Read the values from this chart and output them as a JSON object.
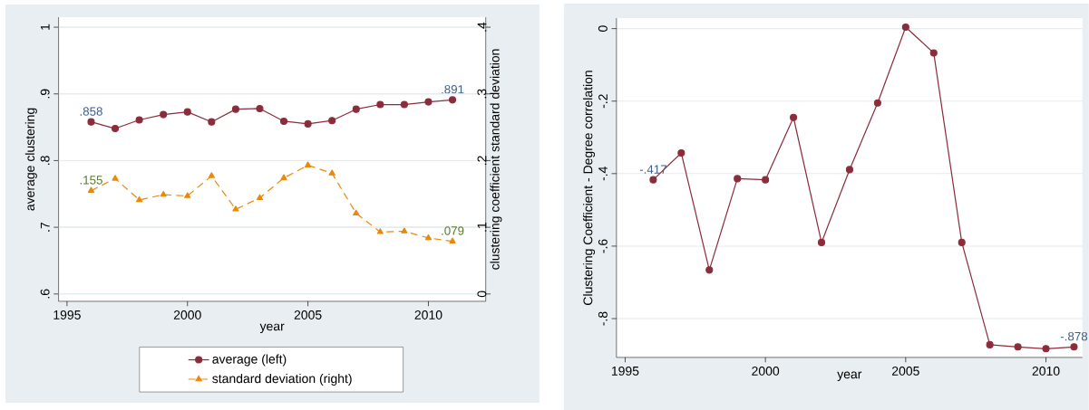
{
  "chart_data": [
    {
      "type": "line",
      "x": [
        1996,
        1997,
        1998,
        1999,
        2000,
        2001,
        2002,
        2003,
        2004,
        2005,
        2006,
        2007,
        2008,
        2009,
        2010,
        2011
      ],
      "xlabel": "year",
      "ylabel": "average clustering",
      "y2label": "clustering coefficient standard deviation",
      "xlim": [
        1994.65,
        2012.38
      ],
      "xticks": [
        1995,
        2000,
        2005,
        2010
      ],
      "ylim": [
        0.589,
        1.015
      ],
      "yticks": [
        {
          "value": 0.6,
          "label": ".6"
        },
        {
          "value": 0.7,
          "label": ".7"
        },
        {
          "value": 0.8,
          "label": ".8"
        },
        {
          "value": 0.9,
          "label": ".9"
        },
        1
      ],
      "y2lim": [
        -0.011,
        0.415
      ],
      "y2ticks": [
        0,
        {
          "value": 0.1,
          "label": ".1"
        },
        {
          "value": 0.2,
          "label": ".2"
        },
        {
          "value": 0.3,
          "label": ".3"
        },
        {
          "value": 0.4,
          "label": ".4"
        }
      ],
      "grid": "y",
      "legend": "bottom",
      "series": [
        {
          "name": "average (left)",
          "color": "#8b2c3a",
          "marker": "circle",
          "line_style": "solid",
          "values": [
            0.858,
            0.848,
            0.861,
            0.869,
            0.873,
            0.858,
            0.877,
            0.878,
            0.859,
            0.855,
            0.86,
            0.877,
            0.884,
            0.884,
            0.888,
            0.891
          ],
          "value_labels": [
            ".858",
            null,
            null,
            null,
            null,
            null,
            null,
            null,
            null,
            null,
            null,
            null,
            null,
            null,
            null,
            ".891"
          ]
        },
        {
          "name": "standard deviation (right)",
          "color": "#e8890c",
          "marker": "triangle",
          "line_style": "dashed",
          "axis": "y2",
          "values": [
            0.155,
            0.173,
            0.141,
            0.149,
            0.147,
            0.177,
            0.127,
            0.144,
            0.174,
            0.193,
            0.181,
            0.121,
            0.093,
            0.094,
            0.084,
            0.079
          ],
          "value_labels": [
            ".155",
            null,
            null,
            null,
            null,
            null,
            null,
            null,
            null,
            null,
            null,
            null,
            null,
            null,
            null,
            ".079"
          ]
        }
      ]
    },
    {
      "type": "line",
      "x": [
        1996,
        1997,
        1998,
        1999,
        2000,
        2001,
        2002,
        2003,
        2004,
        2005,
        2006,
        2007,
        2008,
        2009,
        2010,
        2011
      ],
      "xlabel": "year",
      "ylabel": "Clustering Coefficient - Degree correlation",
      "xlim": [
        1994.69,
        2011.3
      ],
      "xticks": [
        1995,
        2000,
        2005,
        2010
      ],
      "ylim": [
        -0.907,
        0.029
      ],
      "yticks": [
        {
          "value": -0.8,
          "label": "-.8"
        },
        {
          "value": -0.6,
          "label": "-.6"
        },
        {
          "value": -0.4,
          "label": "-.4"
        },
        {
          "value": -0.2,
          "label": "-.2"
        },
        0
      ],
      "grid": "y",
      "series": [
        {
          "color": "#8b2c3a",
          "marker": "circle",
          "line_style": "solid",
          "values": [
            -0.417,
            -0.343,
            -0.666,
            -0.414,
            -0.417,
            -0.245,
            -0.59,
            -0.389,
            -0.205,
            0.004,
            -0.067,
            -0.59,
            -0.872,
            -0.878,
            -0.883,
            -0.878
          ],
          "value_labels": [
            "-.417",
            null,
            null,
            null,
            null,
            null,
            null,
            null,
            null,
            null,
            null,
            null,
            null,
            null,
            null,
            "-.878"
          ]
        }
      ]
    }
  ]
}
